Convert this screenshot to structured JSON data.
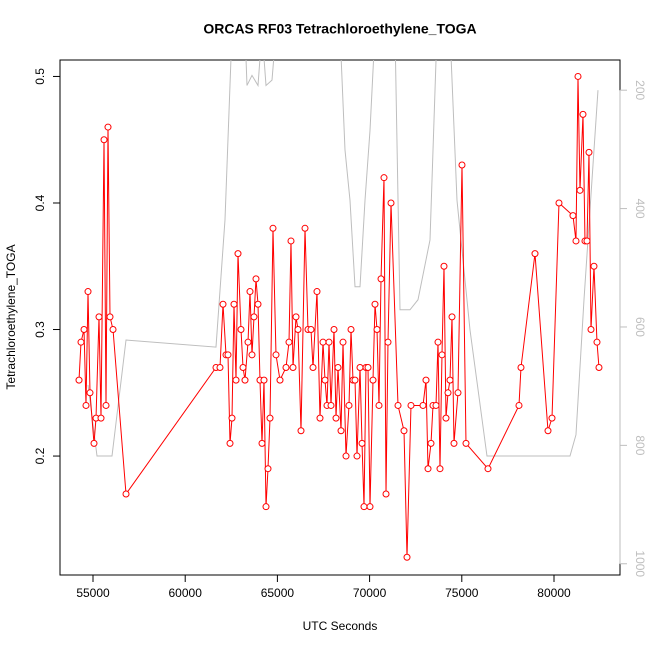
{
  "chart_data": {
    "type": "line",
    "title": "ORCAS RF03 Tetrachloroethylene_TOGA",
    "x_label": "UTC Seconds",
    "y_label": "Tetrachloroethylene_TOGA",
    "xlim": [
      53210,
      83580
    ],
    "xticks": [
      55000,
      60000,
      65000,
      70000,
      75000,
      80000
    ],
    "ylim": [
      0.106,
      0.513
    ],
    "yticks": [
      0.2,
      0.3,
      0.4,
      0.5
    ],
    "y2lim": [
      1019,
      149
    ],
    "y2ticks": [
      200,
      400,
      600,
      800,
      1000
    ],
    "y2_color": "#bebebe",
    "series": [
      {
        "color": "#bebebe",
        "axis": "y2",
        "points": false,
        "x": [
          54729,
          55217,
          56030,
          56790,
          61670,
          62158,
          62538,
          63243,
          63351,
          63622,
          63948,
          64165,
          64382,
          64707,
          64924,
          66225,
          68395,
          68666,
          68937,
          69209,
          69480,
          69751,
          70022,
          70293,
          71377,
          71649,
          72191,
          72625,
          73276,
          73655,
          74360,
          74740,
          75445,
          76366,
          80868,
          81193,
          81627,
          82386
        ],
        "values": [
          698,
          818,
          818,
          622,
          634,
          419,
          100,
          100,
          192,
          175,
          192,
          100,
          192,
          183,
          100,
          100,
          100,
          301,
          386,
          532,
          532,
          386,
          268,
          100,
          100,
          571,
          571,
          554,
          453,
          100,
          100,
          386,
          605,
          818,
          818,
          782,
          554,
          200
        ]
      },
      {
        "color": "#ff0000",
        "points": true,
        "x": [
          54241,
          54349,
          54512,
          54620,
          54729,
          54837,
          55054,
          55163,
          55325,
          55434,
          55597,
          55705,
          55813,
          55922,
          56085,
          56790,
          61670,
          61887,
          62050,
          62213,
          62321,
          62430,
          62538,
          62646,
          62755,
          62863,
          63026,
          63135,
          63243,
          63406,
          63514,
          63622,
          63731,
          63839,
          63948,
          64056,
          64165,
          64273,
          64382,
          64490,
          64599,
          64761,
          64924,
          65141,
          65466,
          65629,
          65737,
          65846,
          66009,
          66117,
          66280,
          66497,
          66659,
          66822,
          66931,
          67147,
          67310,
          67473,
          67582,
          67690,
          67799,
          67907,
          68070,
          68179,
          68287,
          68450,
          68558,
          68721,
          68883,
          68992,
          69100,
          69209,
          69317,
          69480,
          69589,
          69697,
          69805,
          69914,
          70022,
          70185,
          70293,
          70402,
          70510,
          70619,
          70781,
          70890,
          70998,
          71161,
          71541,
          71866,
          72029,
          72245,
          72896,
          73059,
          73168,
          73330,
          73438,
          73601,
          73710,
          73818,
          73926,
          74035,
          74143,
          74252,
          74360,
          74469,
          74577,
          74794,
          75011,
          75228,
          76421,
          78102,
          78210,
          78970,
          79675,
          79892,
          80271,
          81030,
          81193,
          81302,
          81410,
          81573,
          81681,
          81790,
          81898,
          82007,
          82169,
          82332,
          82440
        ],
        "values": [
          0.26,
          0.29,
          0.3,
          0.24,
          0.33,
          0.25,
          0.21,
          0.23,
          0.31,
          0.23,
          0.45,
          0.24,
          0.46,
          0.31,
          0.3,
          0.17,
          0.27,
          0.27,
          0.32,
          0.28,
          0.28,
          0.21,
          0.23,
          0.32,
          0.26,
          0.36,
          0.3,
          0.27,
          0.26,
          0.29,
          0.33,
          0.28,
          0.31,
          0.34,
          0.32,
          0.26,
          0.21,
          0.26,
          0.16,
          0.19,
          0.23,
          0.38,
          0.28,
          0.26,
          0.27,
          0.29,
          0.37,
          0.27,
          0.31,
          0.3,
          0.22,
          0.38,
          0.3,
          0.3,
          0.27,
          0.33,
          0.23,
          0.29,
          0.26,
          0.24,
          0.29,
          0.24,
          0.3,
          0.23,
          0.27,
          0.22,
          0.29,
          0.2,
          0.24,
          0.3,
          0.26,
          0.26,
          0.2,
          0.27,
          0.21,
          0.16,
          0.27,
          0.27,
          0.16,
          0.26,
          0.32,
          0.3,
          0.24,
          0.34,
          0.42,
          0.17,
          0.29,
          0.4,
          0.24,
          0.22,
          0.12,
          0.24,
          0.24,
          0.26,
          0.19,
          0.21,
          0.24,
          0.24,
          0.29,
          0.19,
          0.28,
          0.35,
          0.23,
          0.25,
          0.26,
          0.31,
          0.21,
          0.25,
          0.43,
          0.21,
          0.19,
          0.24,
          0.27,
          0.36,
          0.22,
          0.23,
          0.4,
          0.39,
          0.37,
          0.5,
          0.41,
          0.47,
          0.37,
          0.37,
          0.44,
          0.3,
          0.35,
          0.29,
          0.27
        ]
      }
    ]
  }
}
